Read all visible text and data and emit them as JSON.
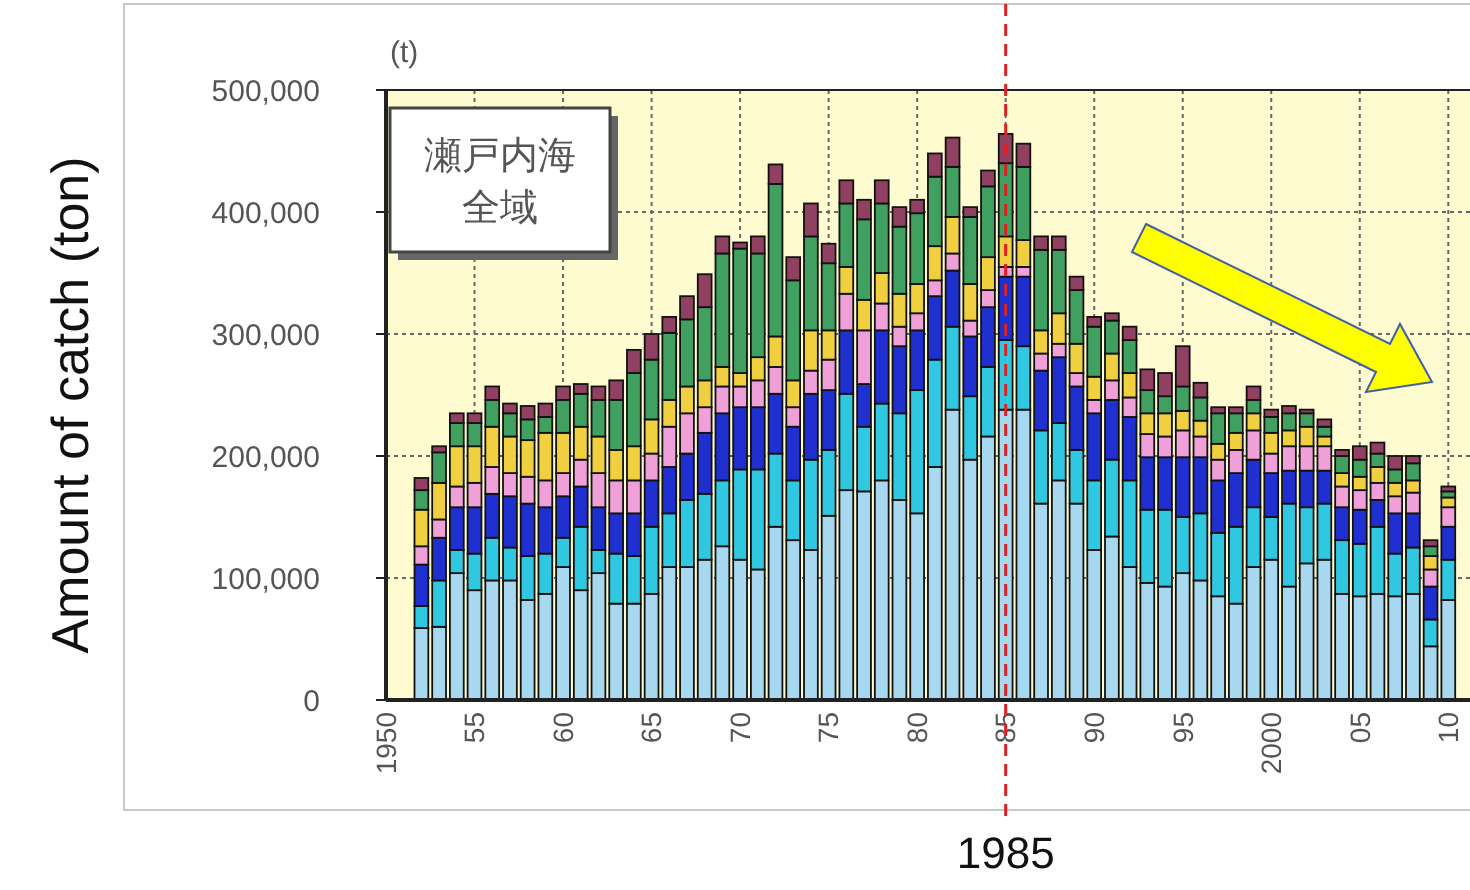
{
  "chart_data": {
    "type": "bar",
    "stacked": true,
    "ylabel": "Amount of catch (ton)",
    "annotations": [
      "(t)",
      "瀬戸内海",
      "全域"
    ],
    "x": [
      1952,
      1953,
      1954,
      1955,
      1956,
      1957,
      1958,
      1959,
      1960,
      1961,
      1962,
      1963,
      1964,
      1965,
      1966,
      1967,
      1968,
      1969,
      1970,
      1971,
      1972,
      1973,
      1974,
      1975,
      1976,
      1977,
      1978,
      1979,
      1980,
      1981,
      1982,
      1983,
      1984,
      1985,
      1986,
      1987,
      1988,
      1989,
      1990,
      1991,
      1992,
      1993,
      1994,
      1995,
      1996,
      1997,
      1998,
      1999,
      2000,
      2001,
      2002,
      2003,
      2004,
      2005,
      2006,
      2007,
      2008,
      2009,
      2010
    ],
    "xlim": [
      1950,
      2011
    ],
    "xticks": [
      1950,
      {
        "value": 1955,
        "label": "55"
      },
      {
        "value": 1960,
        "label": "60"
      },
      {
        "value": 1965,
        "label": "65"
      },
      {
        "value": 1970,
        "label": "70"
      },
      {
        "value": 1975,
        "label": "75"
      },
      {
        "value": 1980,
        "label": "80"
      },
      {
        "value": 1985,
        "label": "85"
      },
      {
        "value": 1990,
        "label": "90"
      },
      {
        "value": 1995,
        "label": "95"
      },
      2000,
      {
        "value": 2005,
        "label": "05"
      },
      {
        "value": 2010,
        "label": "10"
      }
    ],
    "ylim": [
      0,
      500000
    ],
    "yticks": [
      0,
      {
        "value": 100000,
        "label": "100,000"
      },
      {
        "value": 200000,
        "label": "200,000"
      },
      {
        "value": 300000,
        "label": "300,000"
      },
      {
        "value": 400000,
        "label": "400,000"
      },
      {
        "value": 500000,
        "label": "500,000"
      }
    ],
    "grid": true,
    "ref_lines": [
      {
        "axis": "x",
        "value": 1985,
        "label": "1985",
        "color": "#e02020",
        "line_style": "dashed"
      }
    ],
    "series": [
      {
        "color": "#a8d8f0",
        "values": [
          59000,
          60000,
          104000,
          90000,
          98000,
          98000,
          82000,
          87000,
          109000,
          90000,
          104000,
          79000,
          79000,
          87000,
          109000,
          109000,
          115000,
          126000,
          115000,
          107000,
          142000,
          131000,
          123000,
          151000,
          172000,
          171000,
          180000,
          164000,
          153000,
          191000,
          238000,
          197000,
          216000,
          238000,
          238000,
          161000,
          180000,
          161000,
          123000,
          134000,
          109000,
          96000,
          93000,
          104000,
          98000,
          85000,
          79000,
          109000,
          115000,
          93000,
          112000,
          115000,
          87000,
          85000,
          87000,
          85000,
          87000,
          44000,
          82000
        ]
      },
      {
        "color": "#30c8e0",
        "values": [
          18000,
          38000,
          19000,
          30000,
          35000,
          27000,
          36000,
          33000,
          24000,
          52000,
          19000,
          41000,
          39000,
          55000,
          44000,
          55000,
          54000,
          54000,
          74000,
          82000,
          60000,
          49000,
          74000,
          54000,
          79000,
          53000,
          63000,
          71000,
          101000,
          88000,
          68000,
          52000,
          57000,
          57000,
          52000,
          60000,
          47000,
          44000,
          57000,
          63000,
          71000,
          60000,
          63000,
          46000,
          55000,
          52000,
          63000,
          49000,
          35000,
          68000,
          46000,
          46000,
          44000,
          43000,
          55000,
          35000,
          38000,
          22000,
          33000
        ]
      },
      {
        "color": "#2030d0",
        "values": [
          34000,
          35000,
          35000,
          38000,
          36000,
          42000,
          43000,
          38000,
          34000,
          33000,
          35000,
          33000,
          35000,
          38000,
          38000,
          38000,
          50000,
          55000,
          51000,
          51000,
          49000,
          44000,
          54000,
          49000,
          52000,
          35000,
          60000,
          55000,
          49000,
          52000,
          46000,
          49000,
          49000,
          52000,
          57000,
          49000,
          54000,
          52000,
          55000,
          49000,
          52000,
          43000,
          43000,
          49000,
          46000,
          43000,
          44000,
          39000,
          36000,
          27000,
          30000,
          27000,
          27000,
          28000,
          22000,
          33000,
          28000,
          27000,
          27000
        ]
      },
      {
        "color": "#f0a0d8",
        "values": [
          15000,
          15000,
          17000,
          20000,
          22000,
          19000,
          22000,
          22000,
          19000,
          22000,
          28000,
          27000,
          27000,
          22000,
          33000,
          33000,
          21000,
          22000,
          17000,
          22000,
          22000,
          16000,
          19000,
          25000,
          30000,
          44000,
          22000,
          16000,
          14000,
          13000,
          14000,
          13000,
          14000,
          8000,
          8000,
          14000,
          11000,
          11000,
          11000,
          16000,
          16000,
          19000,
          17000,
          22000,
          17000,
          17000,
          19000,
          24000,
          16000,
          20000,
          20000,
          20000,
          17000,
          16000,
          14000,
          14000,
          17000,
          14000,
          16000
        ]
      },
      {
        "color": "#f0d040",
        "values": [
          30000,
          30000,
          33000,
          30000,
          33000,
          30000,
          30000,
          39000,
          33000,
          27000,
          30000,
          25000,
          28000,
          28000,
          22000,
          22000,
          22000,
          16000,
          11000,
          19000,
          25000,
          22000,
          33000,
          24000,
          22000,
          25000,
          25000,
          27000,
          24000,
          28000,
          30000,
          30000,
          27000,
          25000,
          22000,
          19000,
          25000,
          24000,
          19000,
          22000,
          20000,
          17000,
          19000,
          16000,
          13000,
          13000,
          14000,
          14000,
          17000,
          13000,
          16000,
          8000,
          11000,
          11000,
          13000,
          11000,
          10000,
          11000,
          8000
        ]
      },
      {
        "color": "#40a060",
        "values": [
          16000,
          25000,
          19000,
          19000,
          22000,
          19000,
          17000,
          13000,
          27000,
          27000,
          30000,
          41000,
          60000,
          49000,
          55000,
          55000,
          60000,
          93000,
          102000,
          85000,
          125000,
          82000,
          77000,
          55000,
          52000,
          66000,
          57000,
          55000,
          58000,
          57000,
          41000,
          55000,
          58000,
          60000,
          60000,
          66000,
          52000,
          44000,
          41000,
          27000,
          27000,
          19000,
          14000,
          20000,
          19000,
          25000,
          16000,
          11000,
          13000,
          14000,
          11000,
          8000,
          14000,
          14000,
          11000,
          11000,
          14000,
          8000,
          5000
        ]
      },
      {
        "color": "#904060",
        "values": [
          10000,
          5000,
          8000,
          8000,
          11000,
          8000,
          11000,
          11000,
          11000,
          8000,
          11000,
          16000,
          19000,
          21000,
          13000,
          19000,
          27000,
          14000,
          5000,
          14000,
          16000,
          19000,
          27000,
          16000,
          19000,
          16000,
          19000,
          16000,
          11000,
          19000,
          24000,
          8000,
          13000,
          24000,
          19000,
          11000,
          11000,
          11000,
          8000,
          6000,
          11000,
          17000,
          19000,
          33000,
          12000,
          5000,
          5000,
          11000,
          6000,
          6000,
          3000,
          6000,
          5000,
          11000,
          9000,
          11000,
          6000,
          5000,
          4000
        ]
      }
    ]
  }
}
